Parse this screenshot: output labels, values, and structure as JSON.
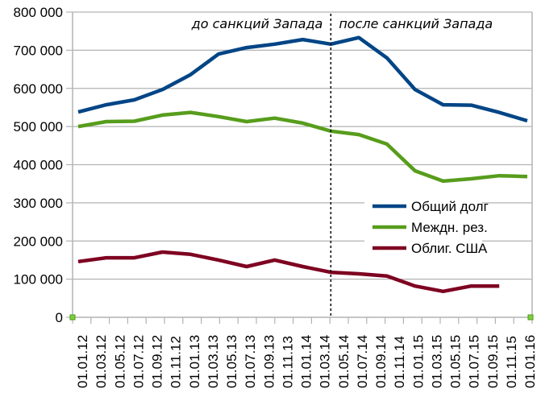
{
  "chart_data": {
    "type": "line",
    "title": "",
    "xlabel": "",
    "ylabel": "",
    "ylim": [
      0,
      800000
    ],
    "yticks": [
      "0",
      "100 000",
      "200 000",
      "300 000",
      "400 000",
      "500 000",
      "600 000",
      "700 000",
      "800 000"
    ],
    "xtick_labels": [
      "01.01.12",
      "01.03.12",
      "01.05.12",
      "01.07.12",
      "01.09.12",
      "01.11.12",
      "01.01.13",
      "01.03.13",
      "01.05.13",
      "01.07.13",
      "01.09.13",
      "01.11.13",
      "01.01.14",
      "01.03.14",
      "01.05.14",
      "01.07.14",
      "01.09.14",
      "01.11.14",
      "01.01.15",
      "01.03.15",
      "01.05.15",
      "01.07.15",
      "01.09.15",
      "01.11.15",
      "01.01.16"
    ],
    "x": [
      "01.01.12",
      "01.04.12",
      "01.07.12",
      "01.10.12",
      "01.01.13",
      "01.04.13",
      "01.07.13",
      "01.10.13",
      "01.01.14",
      "01.04.14",
      "01.07.14",
      "01.10.14",
      "01.01.15",
      "01.04.15",
      "01.07.15",
      "01.10.15",
      "01.01.16"
    ],
    "grid": true,
    "legend_position": "inside-right",
    "series": [
      {
        "name": "Общий долг",
        "color": "#004586",
        "values": [
          538000,
          557000,
          570000,
          597000,
          636000,
          690000,
          707000,
          716000,
          728000,
          716000,
          733000,
          680000,
          597000,
          557000,
          556000,
          537000,
          515000
        ]
      },
      {
        "name": "Междн. рез.",
        "color": "#579d1c",
        "values": [
          500000,
          513000,
          514000,
          530000,
          537000,
          526000,
          513000,
          522000,
          509000,
          488000,
          479000,
          454000,
          384000,
          357000,
          363000,
          371000,
          369000
        ]
      },
      {
        "name": "Облиг. США",
        "color": "#7e0021",
        "values": [
          146000,
          156000,
          156000,
          171000,
          165000,
          150000,
          133000,
          150000,
          133000,
          118000,
          114000,
          108000,
          82000,
          68000,
          82000,
          82000,
          null
        ]
      }
    ],
    "annotations": [
      {
        "text": "до санкций Запада",
        "position": "left-of-divider"
      },
      {
        "text": "после санкций Запада",
        "position": "right-of-divider"
      }
    ],
    "divider": {
      "at": "01.04.14",
      "style": "dashed"
    }
  }
}
